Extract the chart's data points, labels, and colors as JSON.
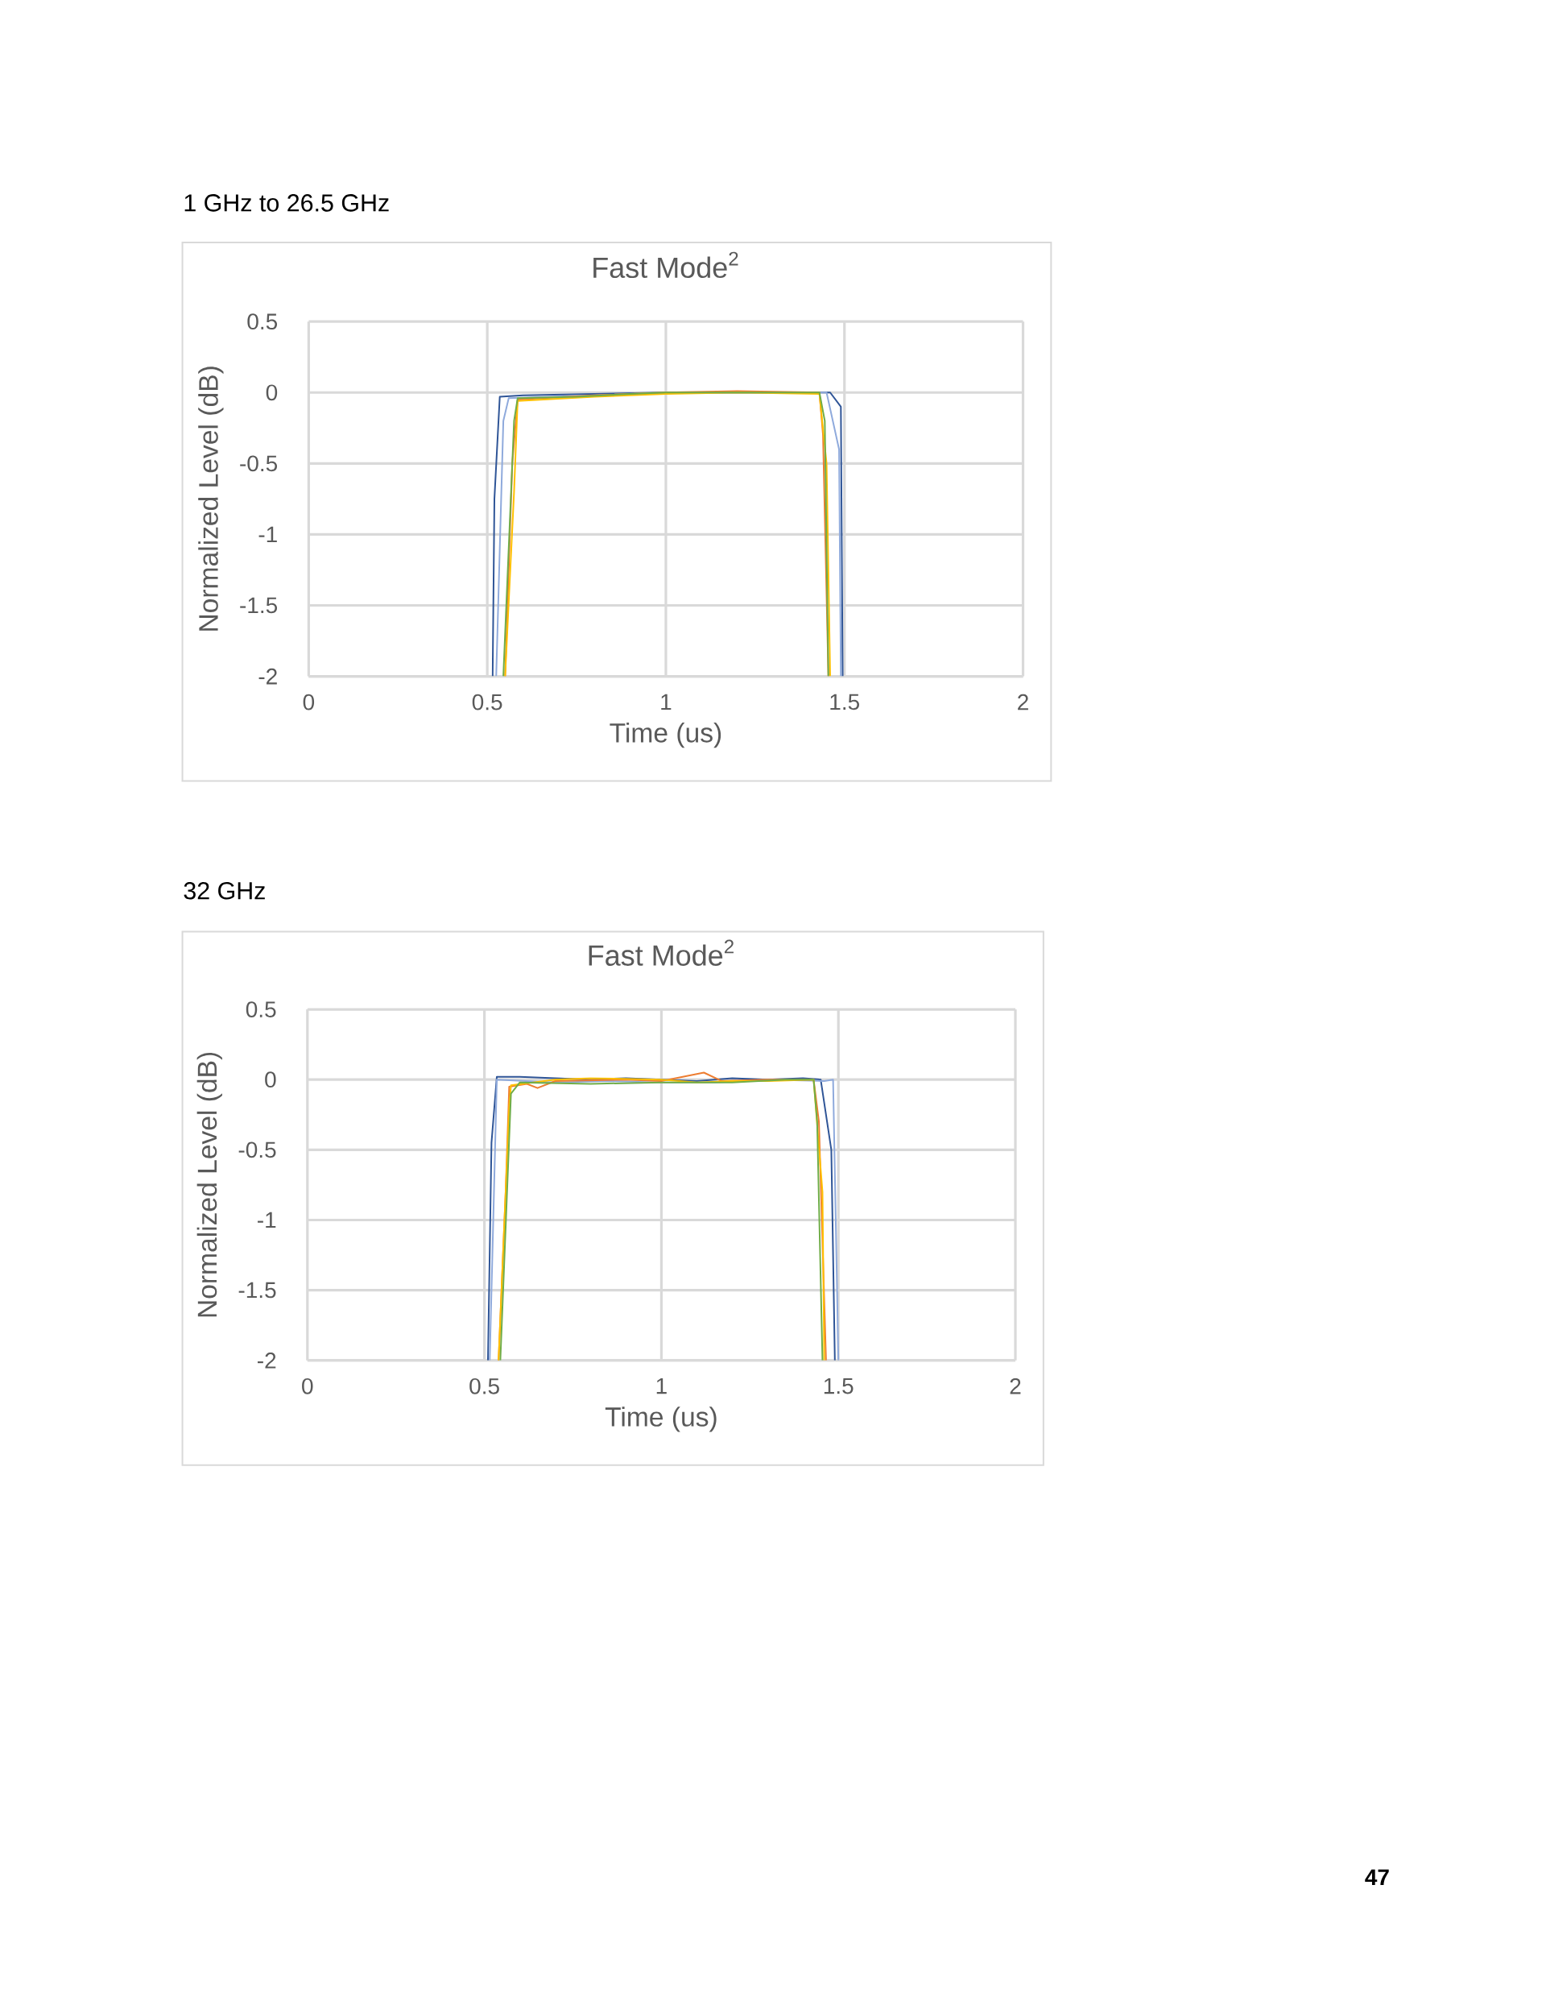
{
  "chart_data": [
    {
      "type": "line",
      "title": "Fast Mode$^{2}$",
      "xlabel": "Time (us)",
      "ylabel": "Normalized Level (dB)",
      "annotations": [
        "1 GHz to 26.5 GHz"
      ],
      "xlim": [
        0,
        2
      ],
      "ylim": [
        -2,
        0.5
      ],
      "xticks": [
        0,
        0.5,
        1,
        1.5,
        2
      ],
      "yticks": [
        0.5,
        0,
        -0.5,
        -1,
        -1.5,
        -2
      ],
      "grid": true,
      "legend": false,
      "marker": "none",
      "line_style": "solid",
      "series": [
        {
          "color": "#2f5597",
          "x": [
            0.515,
            0.52,
            0.535,
            0.6,
            0.8,
            1,
            1.2,
            1.44,
            1.46,
            1.49,
            1.495
          ],
          "values": [
            -2,
            -0.75,
            -0.03,
            -0.02,
            -0.01,
            0,
            0,
            0,
            0,
            -0.1,
            -2
          ]
        },
        {
          "color": "#8faadc",
          "x": [
            0.525,
            0.545,
            0.56,
            0.8,
            1,
            1.3,
            1.45,
            1.485,
            1.49
          ],
          "values": [
            -2,
            -0.2,
            -0.04,
            -0.02,
            0,
            0,
            0,
            -0.4,
            -2
          ]
        },
        {
          "color": "#ed7d31",
          "x": [
            0.55,
            0.57,
            0.585,
            0.8,
            1,
            1.2,
            1.43,
            1.44,
            1.455
          ],
          "values": [
            -2,
            -0.5,
            -0.05,
            -0.02,
            0,
            0.01,
            0,
            -0.3,
            -2
          ]
        },
        {
          "color": "#ffc000",
          "x": [
            0.55,
            0.575,
            0.585,
            0.8,
            1,
            1.2,
            1.43,
            1.45,
            1.46
          ],
          "values": [
            -2,
            -0.7,
            -0.06,
            -0.03,
            -0.01,
            0,
            -0.01,
            -0.5,
            -2
          ]
        },
        {
          "color": "#70ad47",
          "x": [
            0.545,
            0.575,
            0.585,
            0.75,
            0.9,
            1,
            1.43,
            1.445,
            1.455
          ],
          "values": [
            -2,
            -0.2,
            -0.04,
            -0.03,
            -0.01,
            0,
            0,
            -0.2,
            -2
          ]
        }
      ]
    },
    {
      "type": "line",
      "title": "Fast Mode$^{2}$",
      "xlabel": "Time (us)",
      "ylabel": "Normalized Level (dB)",
      "annotations": [
        "32 GHz",
        "47"
      ],
      "xlim": [
        0,
        2
      ],
      "ylim": [
        -2,
        0.5
      ],
      "xticks": [
        0,
        0.5,
        1,
        1.5,
        2
      ],
      "yticks": [
        0.5,
        0,
        -0.5,
        -1,
        -1.5,
        -2
      ],
      "grid": true,
      "legend": false,
      "marker": "none",
      "line_style": "solid",
      "series": [
        {
          "color": "#2f5597",
          "x": [
            0.51,
            0.52,
            0.535,
            0.6,
            0.7,
            0.8,
            0.9,
            1,
            1.1,
            1.2,
            1.3,
            1.4,
            1.45,
            1.48,
            1.49
          ],
          "values": [
            -2,
            -0.45,
            0.02,
            0.02,
            0.01,
            0,
            0.01,
            0,
            -0.01,
            0.01,
            0,
            0.01,
            0,
            -0.5,
            -2
          ]
        },
        {
          "color": "#8faadc",
          "x": [
            0.515,
            0.535,
            0.7,
            0.85,
            1,
            1.15,
            1.3,
            1.46,
            1.485,
            1.5
          ],
          "values": [
            -2,
            0,
            -0.02,
            -0.01,
            -0.02,
            -0.02,
            0,
            -0.01,
            0,
            -2
          ]
        },
        {
          "color": "#ed7d31",
          "x": [
            0.54,
            0.56,
            0.57,
            0.62,
            0.65,
            0.7,
            0.9,
            1,
            1.12,
            1.17,
            1.3,
            1.43,
            1.445,
            1.465
          ],
          "values": [
            -2,
            -0.8,
            -0.05,
            -0.03,
            -0.06,
            -0.01,
            0,
            -0.01,
            0.05,
            -0.01,
            0,
            0,
            -0.3,
            -2
          ]
        },
        {
          "color": "#ffc000",
          "x": [
            0.54,
            0.57,
            0.575,
            0.7,
            0.8,
            1,
            1.1,
            1.2,
            1.3,
            1.43,
            1.455,
            1.46
          ],
          "values": [
            -2,
            -0.2,
            -0.04,
            0,
            0.01,
            0,
            -0.02,
            -0.01,
            -0.01,
            0,
            -0.8,
            -2
          ]
        },
        {
          "color": "#70ad47",
          "x": [
            0.545,
            0.575,
            0.6,
            0.8,
            1,
            1.2,
            1.35,
            1.43,
            1.44,
            1.455
          ],
          "values": [
            -2,
            -0.1,
            -0.02,
            -0.03,
            -0.02,
            -0.02,
            0,
            0,
            -0.3,
            -2
          ]
        }
      ]
    }
  ]
}
